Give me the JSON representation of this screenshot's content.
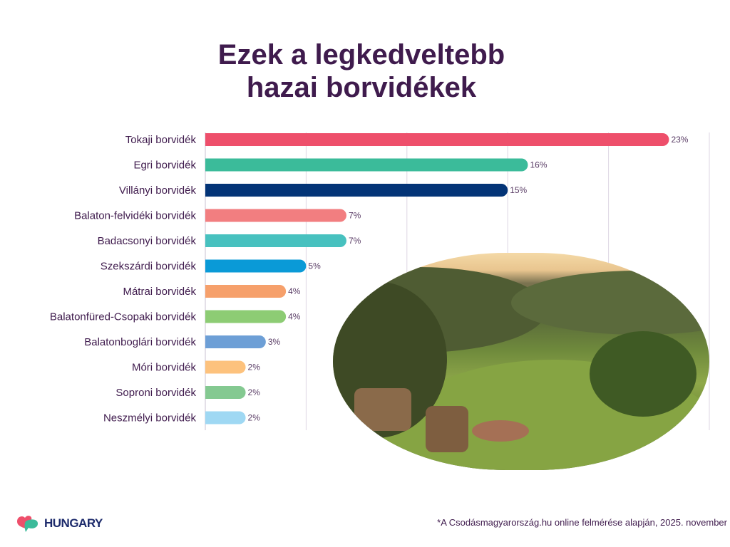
{
  "title_line1": "Ezek a legkedveltebb",
  "title_line2": "hazai borvidékek",
  "chart_data": {
    "type": "bar",
    "orientation": "horizontal",
    "title": "Ezek a legkedveltebb hazai borvidékek",
    "categories": [
      "Tokaji borvidék",
      "Egri borvidék",
      "Villányi borvidék",
      "Balaton-felvidéki borvidék",
      "Badacsonyi borvidék",
      "Szekszárdi borvidék",
      "Mátrai borvidék",
      "Balatonfüred-Csopaki borvidék",
      "Balatonboglári borvidék",
      "Móri borvidék",
      "Soproni borvidék",
      "Neszmélyi borvidék"
    ],
    "values": [
      23,
      16,
      15,
      7,
      7,
      5,
      4,
      4,
      3,
      2,
      2,
      2
    ],
    "labels": [
      "23%",
      "16%",
      "15%",
      "7%",
      "7%",
      "5%",
      "4%",
      "4%",
      "3%",
      "2%",
      "2%",
      "2%"
    ],
    "colors": [
      "#ee4f6b",
      "#3bbb9a",
      "#033477",
      "#f27e80",
      "#47c1bf",
      "#0a9ad7",
      "#f6a06b",
      "#8dcc74",
      "#6d9fd6",
      "#fdc27d",
      "#84c991",
      "#9fd8f3"
    ],
    "xlim": [
      0,
      25
    ],
    "grid_step": 5,
    "grid": true,
    "xlabel": "",
    "ylabel": ""
  },
  "logo_text": "HUNGARY",
  "footnote": "*A Csodásmagyarország.hu online felmérése alapján, 2025. november"
}
